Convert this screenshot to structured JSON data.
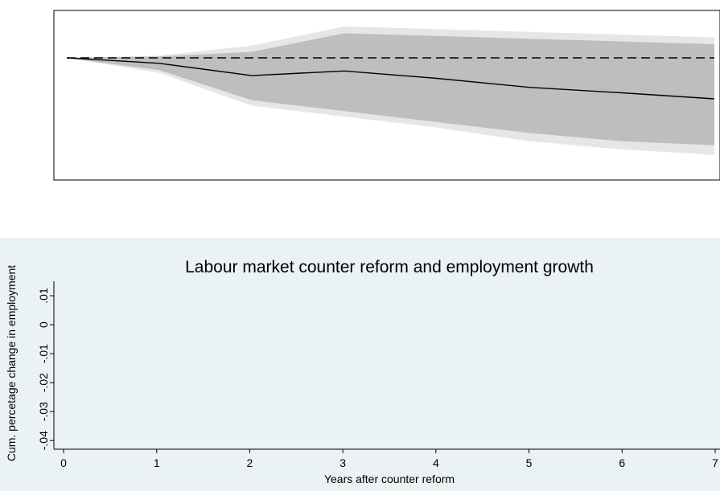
{
  "chart_data": {
    "type": "line",
    "title": "Labour market counter reform and employment growth",
    "xlabel": "Years after counter reform",
    "ylabel": "Cum. percetage change in employment",
    "x": [
      0,
      1,
      2,
      3,
      4,
      5,
      6,
      7
    ],
    "xlim": [
      0,
      7
    ],
    "ylim": [
      -0.043,
      0.015
    ],
    "yticks": [
      0.01,
      0,
      -0.01,
      -0.02,
      -0.03,
      -0.04
    ],
    "ytick_labels": [
      ".01",
      "0",
      "-.01",
      "-.02",
      "-.03",
      "-.04"
    ],
    "xtick_labels": [
      "0",
      "1",
      "2",
      "3",
      "4",
      "5",
      "6",
      "7"
    ],
    "series": [
      {
        "name": "",
        "values": [
          0,
          -0.002,
          -0.0065,
          -0.0048,
          -0.0075,
          -0.0108,
          -0.0128,
          -0.015
        ]
      },
      {
        "name": "",
        "values": [
          0,
          0,
          0,
          0,
          0,
          0,
          0,
          0
        ]
      }
    ],
    "bands": [
      {
        "lower": [
          0,
          -0.0055,
          -0.0175,
          -0.0215,
          -0.0255,
          -0.0305,
          -0.0335,
          -0.0355
        ],
        "upper": [
          0,
          0.0008,
          0.0045,
          0.0115,
          0.0105,
          0.0095,
          0.0085,
          0.0075
        ]
      },
      {
        "lower": [
          0,
          -0.0045,
          -0.0155,
          -0.0195,
          -0.0235,
          -0.0275,
          -0.0305,
          -0.032
        ],
        "upper": [
          0,
          0.0005,
          0.0022,
          0.009,
          0.008,
          0.007,
          0.006,
          0.005
        ]
      }
    ],
    "colors": {
      "plot_region": "#ffffff",
      "graph_region": "#eaf2f3",
      "outer_band": "#e6e6e6",
      "inner_band": "#bebebe",
      "estimate_line": "#000000",
      "zero_line": "#000000"
    },
    "grid": false,
    "legend": "none"
  }
}
